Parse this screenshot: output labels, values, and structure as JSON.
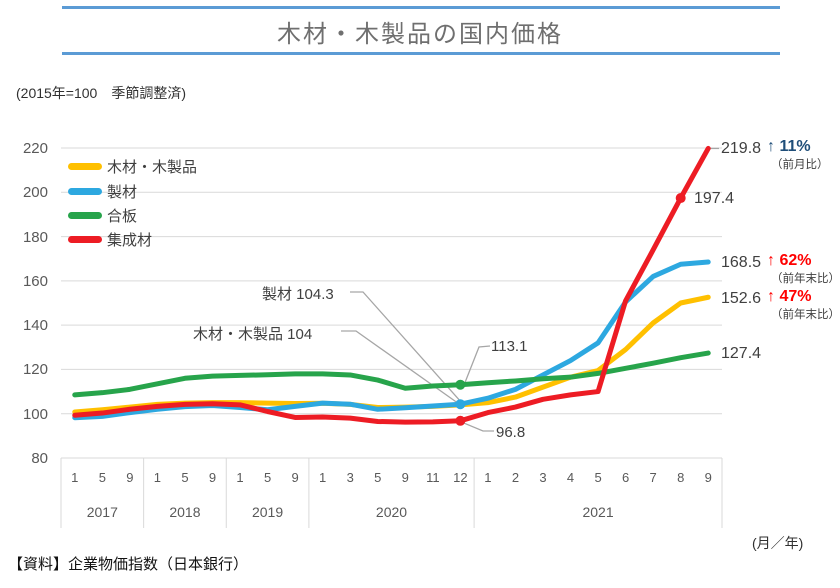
{
  "header": {
    "title": "木材・木製品の国内価格"
  },
  "subtitle": "(2015年=100　季節調整済)",
  "footer": {
    "source": "【資料】企業物価指数（日本銀行）",
    "axis_unit": "(月／年)"
  },
  "colors": {
    "rule_blue": "#5B9BD5",
    "gridline": "#D9D9D9",
    "axis_text": "#595959",
    "annotation_text": "#404040",
    "leader_line": "#A6A6A6",
    "navy_change": "#1F4E79",
    "red_change": "#FF0000"
  },
  "annotations": {
    "seizai_dec2020": "製材 104.3",
    "mokuzai_dec2020": "木材・木製品 104",
    "gohan_dec2020": "113.1",
    "shuseizai_dec2020": "96.8",
    "shuseizai_aug2021": "197.4",
    "end_labels": [
      {
        "value": "219.8",
        "change": "↑ 11%",
        "basis": "（前月比）",
        "change_color": "#1F4E79"
      },
      {
        "value": "168.5",
        "change": "↑ 62%",
        "basis": "（前年末比）",
        "change_color": "#FF0000"
      },
      {
        "value": "152.6",
        "change": "↑ 47%",
        "basis": "（前年末比）",
        "change_color": "#FF0000"
      },
      {
        "value": "127.4",
        "change": "",
        "basis": "",
        "change_color": "#404040"
      }
    ]
  },
  "chart_data": {
    "type": "line",
    "title": "木材・木製品の国内価格",
    "index_note": "2015年=100 季節調整済",
    "ylim": [
      80,
      220
    ],
    "y_ticks": [
      220,
      200,
      180,
      160,
      140,
      120,
      100,
      80
    ],
    "grid": "horizontal",
    "legend_position": "top-left-inside",
    "x_groups": [
      {
        "year": "2017",
        "months": [
          "1",
          "5",
          "9"
        ]
      },
      {
        "year": "2018",
        "months": [
          "1",
          "5",
          "9"
        ]
      },
      {
        "year": "2019",
        "months": [
          "1",
          "5",
          "9"
        ]
      },
      {
        "year": "2020",
        "months": [
          "1",
          "3",
          "5",
          "9",
          "11",
          "12"
        ]
      },
      {
        "year": "2021",
        "months": [
          "1",
          "2",
          "3",
          "4",
          "5",
          "6",
          "7",
          "8",
          "9"
        ]
      }
    ],
    "series": [
      {
        "name": "木材・木製品",
        "color": "#FFC000",
        "values": [
          100.8,
          101.8,
          103,
          104.2,
          104.8,
          105,
          105,
          104.8,
          104.6,
          104.7,
          104.2,
          102.8,
          103,
          103.3,
          104,
          105,
          107.5,
          112,
          116.5,
          119.5,
          129,
          141,
          150,
          152.6
        ]
      },
      {
        "name": "製材",
        "color": "#2DA8E0",
        "values": [
          98.2,
          98.8,
          100.5,
          102,
          103.2,
          103.7,
          102.8,
          101.8,
          103.3,
          104.8,
          104.3,
          102,
          102.7,
          103.5,
          104.3,
          107,
          111,
          117.5,
          124,
          132,
          150.5,
          162,
          167.5,
          168.5
        ]
      },
      {
        "name": "合板",
        "color": "#27A44B",
        "values": [
          108.5,
          109.5,
          111,
          113.5,
          116,
          117,
          117.3,
          117.6,
          118,
          118,
          117.5,
          115.2,
          111.5,
          112.5,
          113.1,
          114,
          114.8,
          115.8,
          116.5,
          118.2,
          120.5,
          122.8,
          125.3,
          127.4
        ]
      },
      {
        "name": "集成材",
        "color": "#ED1C24",
        "values": [
          99.3,
          100.3,
          102,
          103.3,
          104.2,
          104.5,
          104,
          101,
          98.3,
          98.5,
          98,
          96.5,
          96.2,
          96.3,
          96.8,
          100.5,
          103,
          106.5,
          108.5,
          110,
          151,
          174,
          197.4,
          219.8
        ]
      }
    ],
    "labeled_points": [
      {
        "series": "製材",
        "x": "2020-12",
        "value": 104.3
      },
      {
        "series": "木材・木製品",
        "x": "2020-12",
        "value": 104
      },
      {
        "series": "合板",
        "x": "2020-12",
        "value": 113.1
      },
      {
        "series": "集成材",
        "x": "2020-12",
        "value": 96.8
      },
      {
        "series": "集成材",
        "x": "2021-8",
        "value": 197.4
      },
      {
        "series": "集成材",
        "x": "2021-9",
        "value": 219.8
      },
      {
        "series": "製材",
        "x": "2021-9",
        "value": 168.5
      },
      {
        "series": "木材・木製品",
        "x": "2021-9",
        "value": 152.6
      },
      {
        "series": "合板",
        "x": "2021-9",
        "value": 127.4
      }
    ]
  }
}
